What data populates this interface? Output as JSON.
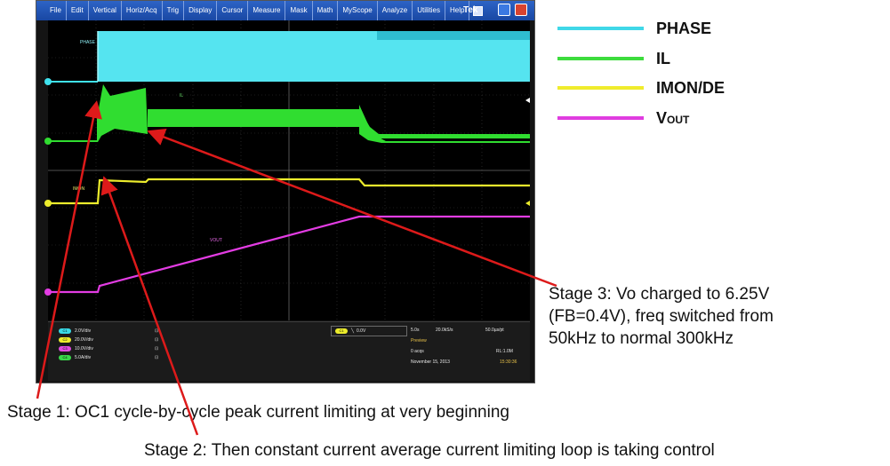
{
  "window": {
    "menu": [
      "File",
      "Edit",
      "Vertical",
      "Horiz/Acq",
      "Trig",
      "Display",
      "Cursor",
      "Measure",
      "Mask",
      "Math",
      "MyScope",
      "Analyze",
      "Utilities",
      "Help"
    ],
    "brand": "Tek"
  },
  "screen": {
    "trace_labels": {
      "phase": "PHASE",
      "il": "IL",
      "imon": "IMON",
      "vout": "VOUT"
    }
  },
  "status": {
    "channels": [
      {
        "label": "C1",
        "scale": "2.0V/div",
        "color": "#39d9e6"
      },
      {
        "label": "C2",
        "scale": "20.0V/div",
        "color": "#39d94a"
      },
      {
        "label": "C3",
        "scale": "10.0V/div",
        "color": "#e04ae0"
      },
      {
        "label": "C4",
        "scale": "5.0A/div",
        "color": "#39d94a"
      }
    ],
    "trigger": {
      "chip": "C1",
      "level": "0.0V"
    },
    "acq": {
      "time_div": "5.0s",
      "sample_rate": "20.0kS/s",
      "resolution": "50.0µs/pt",
      "mode": "Preview",
      "acqs": "0 acqs",
      "record_length": "RL:1.0M",
      "date": "November 15, 2013",
      "time": "15:30:36"
    }
  },
  "legend": {
    "items": [
      {
        "label": "PHASE",
        "color": "#40d8e8"
      },
      {
        "label": "IL",
        "color": "#3ddc3d"
      },
      {
        "label": "IMON/DE",
        "color": "#f0ec2c"
      },
      {
        "label": "V",
        "sub": "OUT",
        "color": "#e03ce0"
      }
    ]
  },
  "annotations": {
    "stage1": "Stage 1: OC1 cycle-by-cycle peak current limiting at very beginning",
    "stage2": "Stage 2: Then constant current average current limiting loop is taking control",
    "stage3": [
      "Stage 3: Vo charged to 6.25V",
      "(FB=0.4V), freq switched from",
      "50kHz to normal 300kHz"
    ]
  }
}
